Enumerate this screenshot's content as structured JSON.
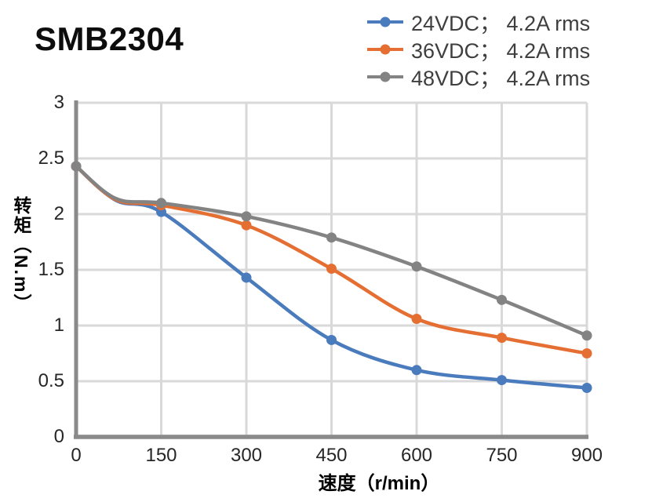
{
  "title": "SMB2304",
  "legend": [
    {
      "label": "24VDC； 4.2A rms",
      "color": "#4a7bbd"
    },
    {
      "label": "36VDC； 4.2A rms",
      "color": "#e56f32"
    },
    {
      "label": "48VDC； 4.2A rms",
      "color": "#838383"
    }
  ],
  "colors": {
    "grid": "#d9d9d9",
    "axis": "#8a8a8a",
    "tick_text": "#262626",
    "legend_text": "#3f3f3f"
  },
  "chart_data": {
    "type": "line",
    "title": "SMB2304",
    "xlabel": "速度（r/min）",
    "ylabel": "转矩（N.m）",
    "x": [
      0,
      150,
      300,
      450,
      600,
      750,
      900
    ],
    "series": [
      {
        "name": "24VDC； 4.2A rms",
        "color": "#4a7bbd",
        "values": [
          2.43,
          2.02,
          1.43,
          0.87,
          0.6,
          0.51,
          0.44
        ]
      },
      {
        "name": "36VDC； 4.2A rms",
        "color": "#e56f32",
        "values": [
          2.43,
          2.08,
          1.9,
          1.51,
          1.06,
          0.89,
          0.75
        ]
      },
      {
        "name": "48VDC； 4.2A rms",
        "color": "#838383",
        "values": [
          2.43,
          2.1,
          1.98,
          1.79,
          1.53,
          1.23,
          0.91
        ]
      }
    ],
    "curve_shoulder": {
      "x": 70,
      "y": [
        2.125,
        2.13,
        2.14
      ]
    },
    "xticks": [
      "0",
      "150",
      "300",
      "450",
      "600",
      "750",
      "900"
    ],
    "yticks": [
      "0",
      "0.5",
      "1",
      "1.5",
      "2",
      "2.5",
      "3"
    ],
    "xlim": [
      0,
      900
    ],
    "ylim": [
      0,
      3
    ],
    "grid": true,
    "legend_position": "top-right",
    "marker": "circle"
  }
}
